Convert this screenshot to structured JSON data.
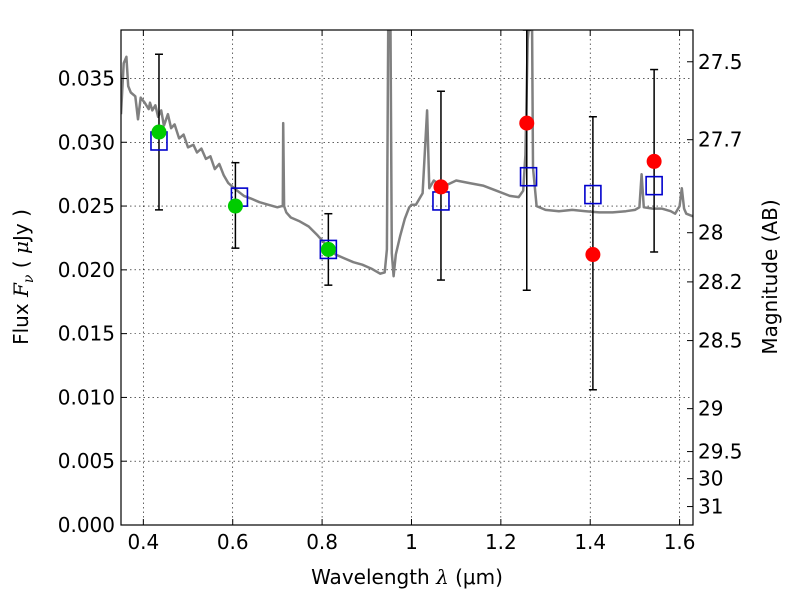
{
  "chart_data": {
    "type": "scatter",
    "xlabel": "Wavelength  λ (μm)",
    "xlabel_parts": {
      "text": "Wavelength  ",
      "symbol": "λ",
      "unit": " (μm)"
    },
    "ylabel": "Flux  Fν  ( μJy )",
    "ylabel_parts": {
      "text": "Flux  ",
      "symbol": "F",
      "subscript": "ν",
      "unit_open": "  ( ",
      "unit_mu": "μ",
      "unit_rest": "Jy )"
    },
    "y2label": "Magnitude (AB)",
    "xlim": [
      0.35,
      1.63
    ],
    "ylim": [
      0.0,
      0.0388
    ],
    "x_ticks": [
      {
        "v": 0.4,
        "label": "0.4"
      },
      {
        "v": 0.6,
        "label": "0.6"
      },
      {
        "v": 0.8,
        "label": "0.8"
      },
      {
        "v": 1.0,
        "label": "1"
      },
      {
        "v": 1.2,
        "label": "1.2"
      },
      {
        "v": 1.4,
        "label": "1.4"
      },
      {
        "v": 1.6,
        "label": "1.6"
      }
    ],
    "y_ticks": [
      {
        "v": 0.0,
        "label": "0.000"
      },
      {
        "v": 0.005,
        "label": "0.005"
      },
      {
        "v": 0.01,
        "label": "0.010"
      },
      {
        "v": 0.015,
        "label": "0.015"
      },
      {
        "v": 0.02,
        "label": "0.020"
      },
      {
        "v": 0.025,
        "label": "0.025"
      },
      {
        "v": 0.03,
        "label": "0.030"
      },
      {
        "v": 0.035,
        "label": "0.035"
      }
    ],
    "y2_ticks": [
      {
        "mag": 27.5,
        "label": "27.5"
      },
      {
        "mag": 27.7,
        "label": "27.7"
      },
      {
        "mag": 28.0,
        "label": "28"
      },
      {
        "mag": 28.2,
        "label": "28.2"
      },
      {
        "mag": 28.5,
        "label": "28.5"
      },
      {
        "mag": 29.0,
        "label": "29"
      },
      {
        "mag": 29.5,
        "label": "29.5"
      },
      {
        "mag": 30.0,
        "label": "30"
      },
      {
        "mag": 31.0,
        "label": "31"
      }
    ],
    "grid": true,
    "colors": {
      "template": "#808080",
      "model_box": "#0000cc",
      "detection": "#00cc00",
      "upper": "#ff0000",
      "errorbar": "#000000"
    },
    "observed": [
      {
        "x": 0.435,
        "y": 0.0308,
        "yerr_lo": 0.0247,
        "yerr_hi": 0.0369,
        "kind": "detection"
      },
      {
        "x": 0.606,
        "y": 0.025,
        "yerr_lo": 0.0217,
        "yerr_hi": 0.0284,
        "kind": "detection"
      },
      {
        "x": 0.814,
        "y": 0.0216,
        "yerr_lo": 0.0188,
        "yerr_hi": 0.0244,
        "kind": "detection"
      },
      {
        "x": 1.066,
        "y": 0.0265,
        "yerr_lo": 0.0192,
        "yerr_hi": 0.034,
        "kind": "upper"
      },
      {
        "x": 1.258,
        "y": 0.0315,
        "yerr_lo": 0.0184,
        "yerr_hi": 0.0388,
        "kind": "upper"
      },
      {
        "x": 1.406,
        "y": 0.0212,
        "yerr_lo": 0.0106,
        "yerr_hi": 0.032,
        "kind": "upper"
      },
      {
        "x": 1.543,
        "y": 0.0285,
        "yerr_lo": 0.0214,
        "yerr_hi": 0.0357,
        "kind": "upper"
      }
    ],
    "model": [
      {
        "x": 0.435,
        "y": 0.0301
      },
      {
        "x": 0.615,
        "y": 0.0257
      },
      {
        "x": 0.814,
        "y": 0.0216
      },
      {
        "x": 1.066,
        "y": 0.0254
      },
      {
        "x": 1.262,
        "y": 0.0273
      },
      {
        "x": 1.406,
        "y": 0.0259
      },
      {
        "x": 1.543,
        "y": 0.0266
      }
    ],
    "template_spectrum": [
      [
        0.35,
        0.0322
      ],
      [
        0.356,
        0.0362
      ],
      [
        0.362,
        0.0367
      ],
      [
        0.366,
        0.0344
      ],
      [
        0.372,
        0.0339
      ],
      [
        0.382,
        0.0336
      ],
      [
        0.388,
        0.0318
      ],
      [
        0.394,
        0.0335
      ],
      [
        0.403,
        0.0331
      ],
      [
        0.412,
        0.0326
      ],
      [
        0.415,
        0.0331
      ],
      [
        0.42,
        0.0325
      ],
      [
        0.427,
        0.0329
      ],
      [
        0.433,
        0.032
      ],
      [
        0.44,
        0.0325
      ],
      [
        0.446,
        0.0313
      ],
      [
        0.455,
        0.0322
      ],
      [
        0.462,
        0.0311
      ],
      [
        0.47,
        0.0314
      ],
      [
        0.48,
        0.0303
      ],
      [
        0.49,
        0.0306
      ],
      [
        0.5,
        0.0296
      ],
      [
        0.512,
        0.0298
      ],
      [
        0.52,
        0.0292
      ],
      [
        0.53,
        0.0295
      ],
      [
        0.54,
        0.0287
      ],
      [
        0.55,
        0.0289
      ],
      [
        0.56,
        0.0279
      ],
      [
        0.57,
        0.0283
      ],
      [
        0.58,
        0.0274
      ],
      [
        0.59,
        0.0268
      ],
      [
        0.6,
        0.0265
      ],
      [
        0.61,
        0.0262
      ],
      [
        0.625,
        0.0258
      ],
      [
        0.64,
        0.0256
      ],
      [
        0.66,
        0.0253
      ],
      [
        0.68,
        0.0251
      ],
      [
        0.7,
        0.0249
      ],
      [
        0.71,
        0.025
      ],
      [
        0.712,
        0.025
      ],
      [
        0.713,
        0.0315
      ],
      [
        0.715,
        0.025
      ],
      [
        0.72,
        0.0245
      ],
      [
        0.73,
        0.0241
      ],
      [
        0.75,
        0.0238
      ],
      [
        0.77,
        0.0234
      ],
      [
        0.79,
        0.0227
      ],
      [
        0.81,
        0.0219
      ],
      [
        0.83,
        0.0212
      ],
      [
        0.85,
        0.0209
      ],
      [
        0.87,
        0.0206
      ],
      [
        0.89,
        0.0204
      ],
      [
        0.91,
        0.0201
      ],
      [
        0.93,
        0.0197
      ],
      [
        0.94,
        0.0198
      ],
      [
        0.945,
        0.0216
      ],
      [
        0.948,
        0.0388
      ],
      [
        0.953,
        0.0388
      ],
      [
        0.956,
        0.0213
      ],
      [
        0.96,
        0.0195
      ],
      [
        0.965,
        0.0212
      ],
      [
        0.975,
        0.0227
      ],
      [
        0.985,
        0.024
      ],
      [
        0.995,
        0.0249
      ],
      [
        1.0,
        0.0251
      ],
      [
        1.01,
        0.0251
      ],
      [
        1.025,
        0.026
      ],
      [
        1.035,
        0.0325
      ],
      [
        1.04,
        0.0264
      ],
      [
        1.05,
        0.027
      ],
      [
        1.07,
        0.0265
      ],
      [
        1.1,
        0.027
      ],
      [
        1.13,
        0.0268
      ],
      [
        1.16,
        0.0266
      ],
      [
        1.19,
        0.0262
      ],
      [
        1.22,
        0.0258
      ],
      [
        1.24,
        0.0257
      ],
      [
        1.25,
        0.0262
      ],
      [
        1.255,
        0.029
      ],
      [
        1.26,
        0.038
      ],
      [
        1.262,
        0.0388
      ],
      [
        1.27,
        0.0388
      ],
      [
        1.272,
        0.028
      ],
      [
        1.28,
        0.025
      ],
      [
        1.3,
        0.0247
      ],
      [
        1.33,
        0.0246
      ],
      [
        1.36,
        0.0247
      ],
      [
        1.39,
        0.0246
      ],
      [
        1.42,
        0.0245
      ],
      [
        1.45,
        0.0245
      ],
      [
        1.48,
        0.0246
      ],
      [
        1.5,
        0.0247
      ],
      [
        1.51,
        0.0249
      ],
      [
        1.515,
        0.0275
      ],
      [
        1.52,
        0.0249
      ],
      [
        1.54,
        0.0248
      ],
      [
        1.56,
        0.0248
      ],
      [
        1.58,
        0.0246
      ],
      [
        1.59,
        0.0244
      ],
      [
        1.6,
        0.025
      ],
      [
        1.605,
        0.0264
      ],
      [
        1.61,
        0.0248
      ],
      [
        1.615,
        0.0244
      ],
      [
        1.63,
        0.0242
      ]
    ]
  }
}
